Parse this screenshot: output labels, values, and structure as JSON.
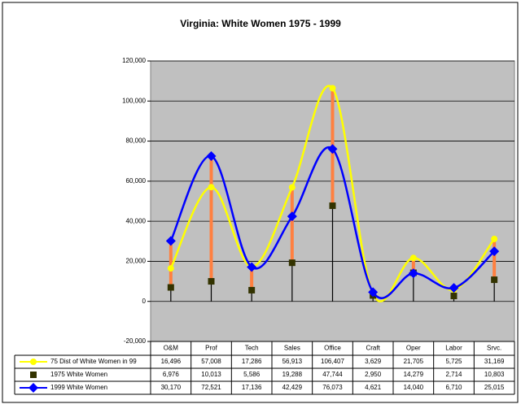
{
  "chart_data": {
    "type": "line",
    "title": "Virginia: White Women 1975 - 1999",
    "categories": [
      "O&M",
      "Prof",
      "Tech",
      "Sales",
      "Office",
      "Craft",
      "Oper",
      "Labor",
      "Srvc."
    ],
    "series": [
      {
        "name": "75 Dist of White Women in 99",
        "color": "#ffff00",
        "marker": "circle",
        "values": [
          16496,
          57008,
          17286,
          56913,
          106407,
          3629,
          21705,
          5725,
          31169
        ],
        "value_labels": [
          "16,496",
          "57,008",
          "17,286",
          "56,913",
          "106,407",
          "3,629",
          "21,705",
          "5,725",
          "31,169"
        ]
      },
      {
        "name": "1975 White Women",
        "color": "#333300",
        "marker": "square",
        "values": [
          6976,
          10013,
          5586,
          19288,
          47744,
          2950,
          14279,
          2714,
          10803
        ],
        "value_labels": [
          "6,976",
          "10,013",
          "5,586",
          "19,288",
          "47,744",
          "2,950",
          "14,279",
          "2,714",
          "10,803"
        ]
      },
      {
        "name": "1999 White Women",
        "color": "#0000ff",
        "marker": "diamond",
        "values": [
          30170,
          72521,
          17136,
          42429,
          76073,
          4621,
          14040,
          6710,
          25015
        ],
        "value_labels": [
          "30,170",
          "72,521",
          "17,136",
          "42,429",
          "76,073",
          "4,621",
          "14,040",
          "6,710",
          "25,015"
        ]
      }
    ],
    "ylim": [
      -20000,
      120000
    ],
    "yticks": [
      {
        "value": -20000,
        "label": "-20,000"
      },
      0,
      {
        "value": 20000,
        "label": "20,000"
      },
      {
        "value": 40000,
        "label": "40,000"
      },
      {
        "value": 60000,
        "label": "60,000"
      },
      {
        "value": 80000,
        "label": "80,000"
      },
      {
        "value": 100000,
        "label": "100,000"
      },
      {
        "value": 120000,
        "label": "120,000"
      }
    ],
    "grid": true,
    "plot_background": "#c0c0c0",
    "high_low_color": "#ff8040"
  }
}
